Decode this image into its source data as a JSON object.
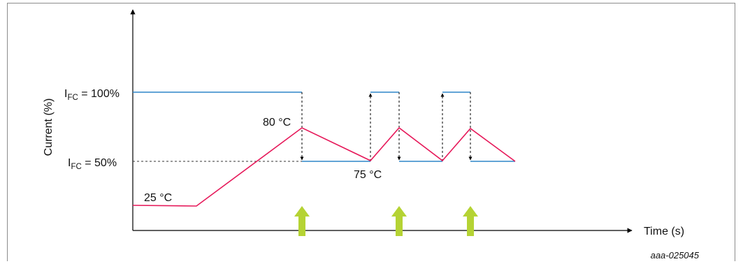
{
  "y_axis_label": "Current (%)",
  "x_axis_label": "Time (s)",
  "level_high": {
    "prefix": "I",
    "subscript": "FC",
    "suffix": " = 100%"
  },
  "level_low": {
    "prefix": "I",
    "subscript": "FC",
    "suffix": " = 50%"
  },
  "temp_annotations": {
    "start": "25 °C",
    "peak": "80 °C",
    "valley": "75 °C"
  },
  "figure_id": "aaa-025045",
  "colors": {
    "current_trace": "#2e86c9",
    "temperature_trace": "#e6195a",
    "event_arrow": "#b5d334",
    "axis": "#000000",
    "guide": "#333333"
  }
}
